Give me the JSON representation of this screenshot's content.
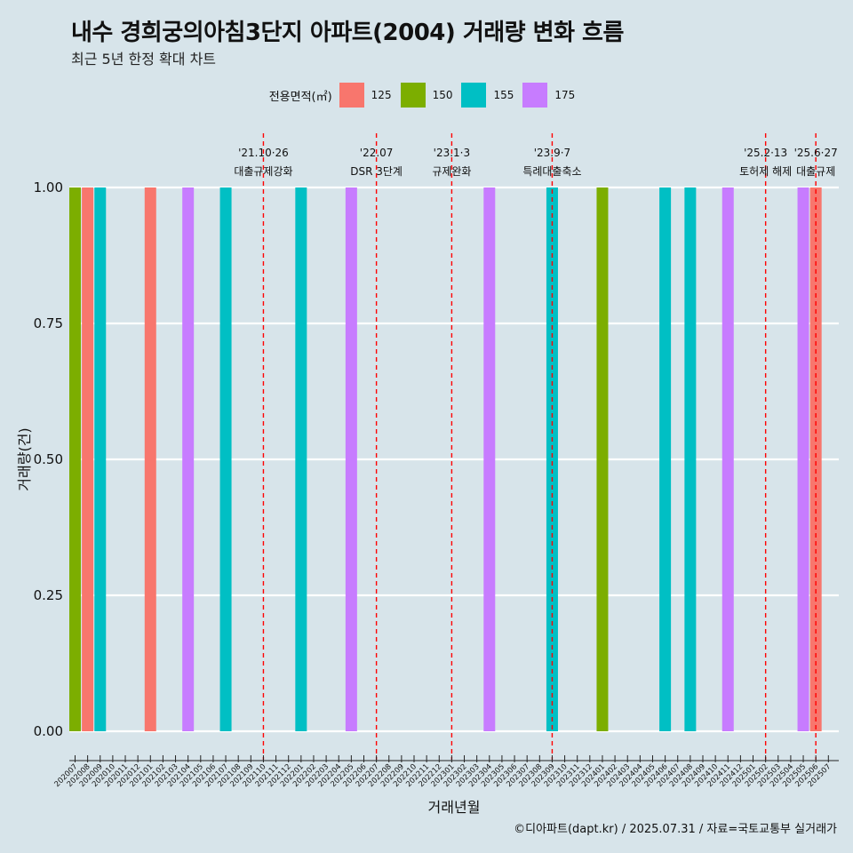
{
  "title": "내수 경희궁의아침3단지 아파트(2004) 거래량 변화 흐름",
  "subtitle": "최근 5년 한정 확대 차트",
  "caption": "©디아파트(dapt.kr) / 2025.07.31 / 자료=국토교통부 실거래가",
  "legend": {
    "title": "전용면적(㎡)",
    "items": [
      {
        "label": "125",
        "color": "#f8766d"
      },
      {
        "label": "150",
        "color": "#7cae00"
      },
      {
        "label": "155",
        "color": "#00bfc4"
      },
      {
        "label": "175",
        "color": "#c77cff"
      }
    ]
  },
  "chart_data": {
    "type": "bar",
    "xlabel": "거래년월",
    "ylabel": "거래량(건)",
    "ylim": [
      0,
      1
    ],
    "yticks": [
      "0.00",
      "0.25",
      "0.50",
      "0.75",
      "1.00"
    ],
    "categories": [
      "202007",
      "202008",
      "202009",
      "202010",
      "202011",
      "202012",
      "202101",
      "202102",
      "202103",
      "202104",
      "202105",
      "202106",
      "202107",
      "202108",
      "202109",
      "202110",
      "202111",
      "202112",
      "202201",
      "202202",
      "202203",
      "202204",
      "202205",
      "202206",
      "202207",
      "202208",
      "202209",
      "202210",
      "202211",
      "202212",
      "202301",
      "202302",
      "202303",
      "202304",
      "202305",
      "202306",
      "202307",
      "202308",
      "202309",
      "202310",
      "202311",
      "202312",
      "202401",
      "202402",
      "202403",
      "202404",
      "202405",
      "202406",
      "202407",
      "202408",
      "202409",
      "202410",
      "202411",
      "202412",
      "202501",
      "202502",
      "202503",
      "202504",
      "202505",
      "202506",
      "202507"
    ],
    "bars": [
      {
        "month": "202007",
        "area": "150",
        "value": 1
      },
      {
        "month": "202008",
        "area": "125",
        "value": 1
      },
      {
        "month": "202009",
        "area": "155",
        "value": 1
      },
      {
        "month": "202101",
        "area": "125",
        "value": 1
      },
      {
        "month": "202104",
        "area": "175",
        "value": 1
      },
      {
        "month": "202107",
        "area": "155",
        "value": 1
      },
      {
        "month": "202201",
        "area": "155",
        "value": 1
      },
      {
        "month": "202205",
        "area": "175",
        "value": 1
      },
      {
        "month": "202304",
        "area": "175",
        "value": 1
      },
      {
        "month": "202309",
        "area": "155",
        "value": 1
      },
      {
        "month": "202401",
        "area": "150",
        "value": 1
      },
      {
        "month": "202406",
        "area": "155",
        "value": 1
      },
      {
        "month": "202408",
        "area": "155",
        "value": 1
      },
      {
        "month": "202411",
        "area": "175",
        "value": 1
      },
      {
        "month": "202505",
        "area": "175",
        "value": 1
      },
      {
        "month": "202506",
        "area": "125",
        "value": 1
      }
    ],
    "events": [
      {
        "month": "202110",
        "date": "'21.10·26",
        "label": "대출규제강화"
      },
      {
        "month": "202207",
        "date": "'22.07",
        "label": "DSR 3단계"
      },
      {
        "month": "202301",
        "date": "'23.1·3",
        "label": "규제완화"
      },
      {
        "month": "202309",
        "date": "'23.9·7",
        "label": "특례대출축소"
      },
      {
        "month": "202502",
        "date": "'25.2·13",
        "label": "토허제 해제"
      },
      {
        "month": "202506",
        "date": "'25.6·27",
        "label": "대출규제"
      }
    ]
  }
}
